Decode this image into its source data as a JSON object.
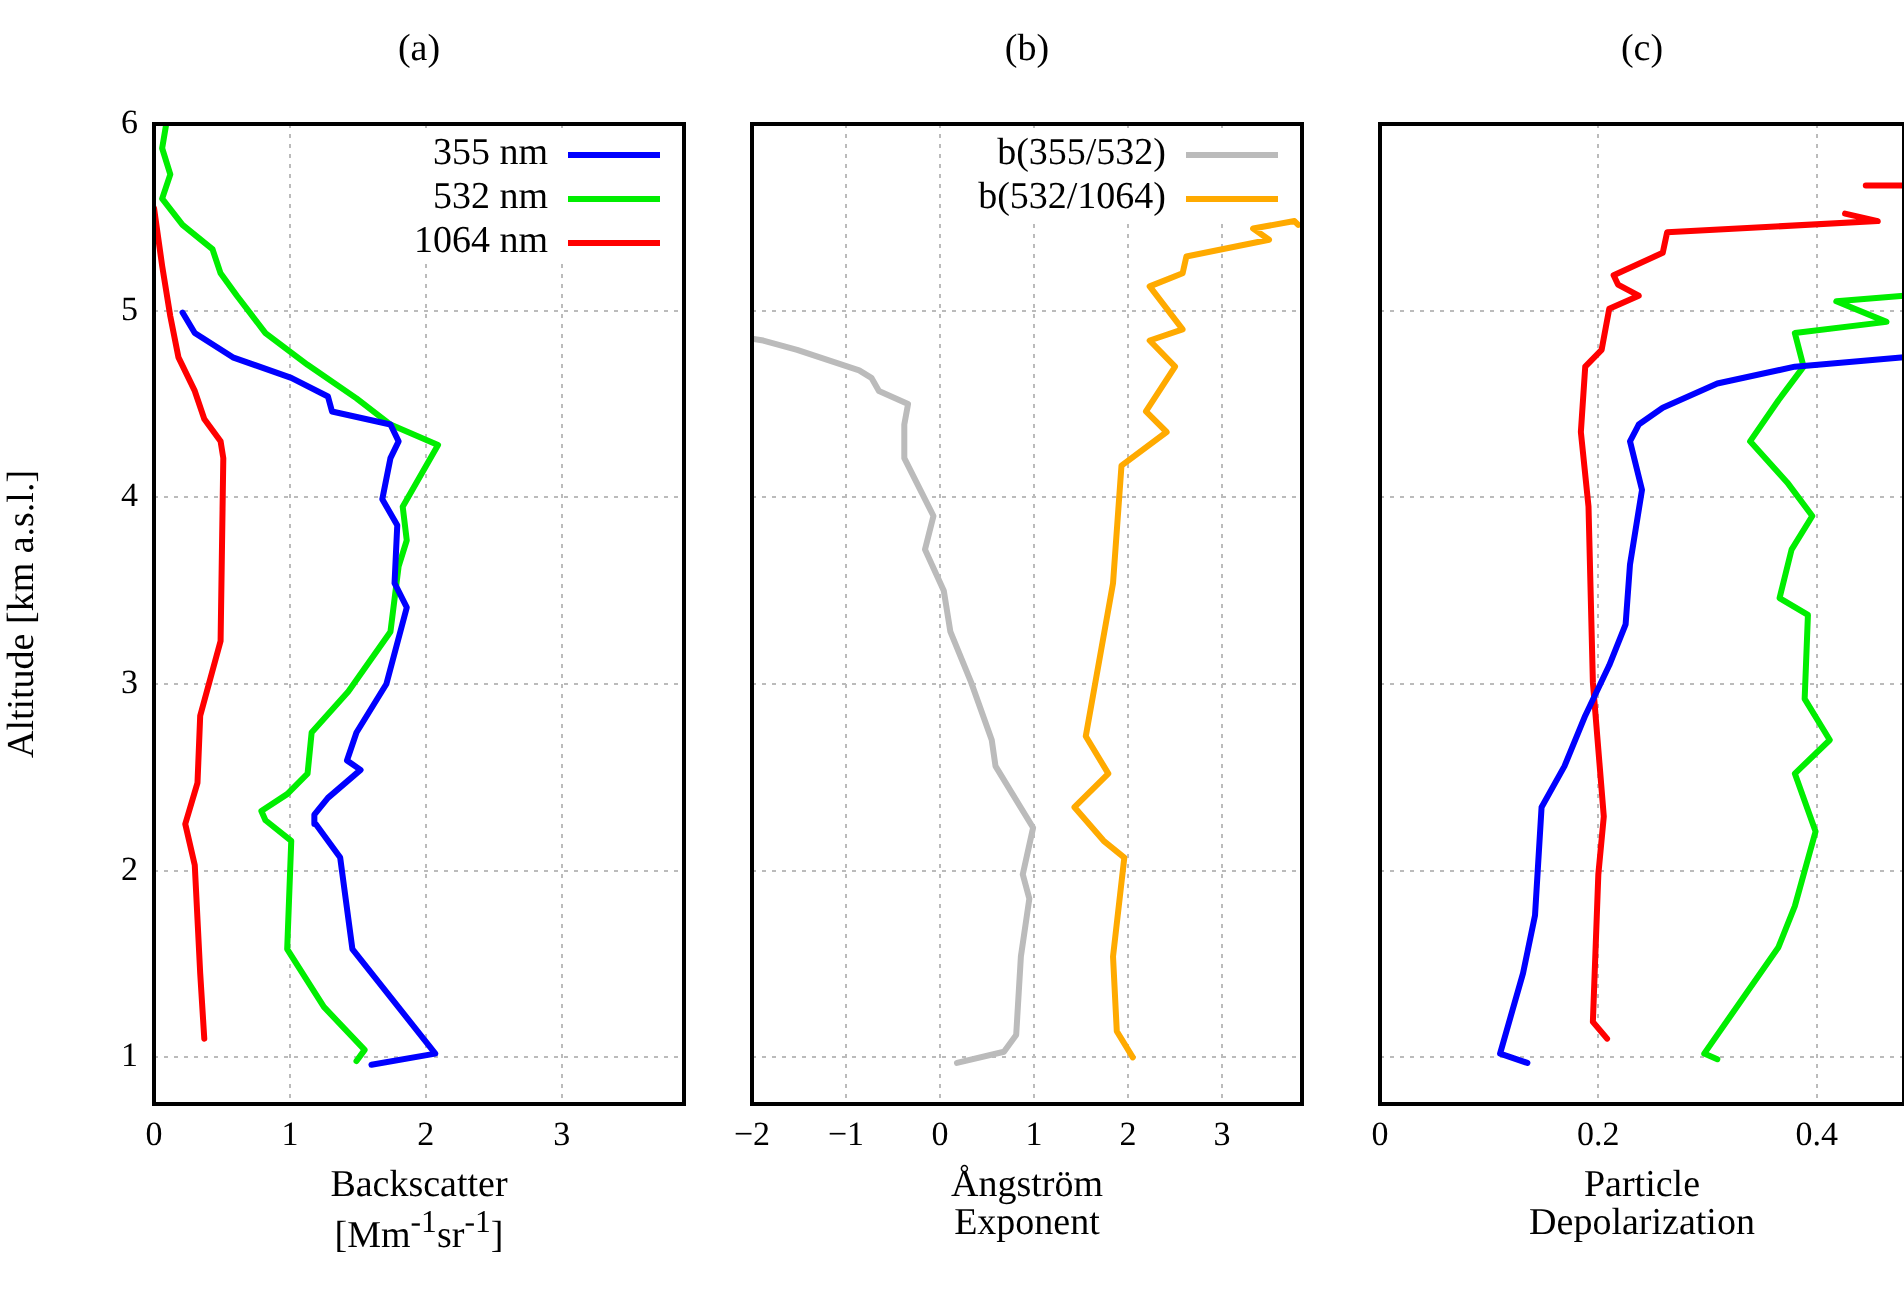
{
  "chart_data": [
    {
      "type": "line",
      "title": "(a)",
      "xlabel": "Backscatter\n[Mm$^{-1}$sr$^{-1}$]",
      "ylabel": "Altitude [km a.s.l.]",
      "xlim": [
        0,
        3.9
      ],
      "xticks": [
        0,
        1,
        2,
        3
      ],
      "ylim": [
        0.75,
        6
      ],
      "yticks": [
        1,
        2,
        3,
        4,
        5,
        6
      ],
      "grid": true,
      "legend": "top right",
      "marker": "none",
      "line_style": "solid",
      "series": [
        {
          "name": "355 nm",
          "color": "#0000ff",
          "x": [
            1.6,
            2.07,
            1.46,
            1.37,
            1.19,
            1.18,
            1.28,
            1.52,
            1.42,
            1.49,
            1.71,
            1.86,
            1.77,
            1.79,
            1.68,
            1.74,
            1.8,
            1.74,
            1.31,
            1.28,
            1.01,
            0.58,
            0.3,
            0.21
          ],
          "values": [
            0.96,
            1.02,
            1.58,
            2.07,
            2.25,
            2.3,
            2.39,
            2.54,
            2.59,
            2.74,
            3.0,
            3.41,
            3.54,
            3.85,
            3.99,
            4.21,
            4.3,
            4.39,
            4.46,
            4.54,
            4.64,
            4.75,
            4.88,
            4.99
          ]
        },
        {
          "name": "532 nm",
          "color": "#00ee00",
          "x": [
            1.49,
            1.55,
            1.25,
            0.98,
            1.01,
            0.82,
            0.79,
            0.98,
            1.13,
            1.16,
            1.43,
            1.74,
            1.8,
            1.86,
            1.83,
            2.09,
            1.74,
            1.49,
            1.13,
            0.82,
            0.61,
            0.49,
            0.43,
            0.21,
            0.06,
            0.12,
            0.06,
            0.09
          ],
          "values": [
            0.98,
            1.04,
            1.27,
            1.58,
            2.16,
            2.27,
            2.32,
            2.41,
            2.52,
            2.74,
            2.96,
            3.28,
            3.63,
            3.77,
            3.95,
            4.28,
            4.39,
            4.53,
            4.71,
            4.88,
            5.08,
            5.2,
            5.33,
            5.46,
            5.6,
            5.73,
            5.87,
            6.0
          ]
        },
        {
          "name": "1064 nm",
          "color": "#ff0000",
          "x": [
            0.37,
            0.34,
            0.3,
            0.23,
            0.32,
            0.34,
            0.49,
            0.51,
            0.49,
            0.37,
            0.3,
            0.18,
            0.12,
            0.06,
            0
          ],
          "values": [
            1.1,
            1.45,
            2.03,
            2.25,
            2.47,
            2.83,
            3.23,
            4.21,
            4.3,
            4.42,
            4.57,
            4.75,
            4.97,
            5.24,
            5.55
          ]
        }
      ]
    },
    {
      "type": "line",
      "title": "(b)",
      "xlabel": "Ångström\nExponent",
      "xlim": [
        -2,
        3.85
      ],
      "xticks": [
        {
          "value": -2,
          "label": "−2"
        },
        {
          "value": -1,
          "label": "−1"
        },
        0,
        1,
        2,
        3
      ],
      "ylim": [
        0.75,
        6
      ],
      "yticks": [
        1,
        2,
        3,
        4,
        5,
        6
      ],
      "tick_labels": "x",
      "grid": true,
      "legend": "top right",
      "marker": "none",
      "line_style": "solid",
      "series": [
        {
          "name": "b(355/532)",
          "color": "#bbbbbb",
          "x": [
            0.18,
            0.68,
            0.81,
            0.86,
            0.95,
            0.88,
            0.99,
            0.59,
            0.55,
            0.33,
            0.11,
            0.04,
            -0.16,
            -0.07,
            -0.38,
            -0.38,
            -0.34,
            -0.65,
            -0.73,
            -0.86,
            -1.52,
            -1.88,
            -2
          ],
          "values": [
            0.97,
            1.03,
            1.12,
            1.54,
            1.85,
            1.98,
            2.23,
            2.56,
            2.7,
            3.01,
            3.28,
            3.5,
            3.72,
            3.9,
            4.21,
            4.39,
            4.5,
            4.57,
            4.64,
            4.68,
            4.79,
            4.84,
            4.85
          ]
        },
        {
          "name": "b(532/1064)",
          "color": "#ffaa00",
          "x": [
            2.05,
            1.88,
            1.84,
            1.96,
            1.74,
            1.43,
            1.79,
            1.55,
            1.84,
            1.93,
            2.41,
            2.19,
            2.5,
            2.23,
            2.58,
            2.23,
            2.58,
            2.62,
            3.5,
            3.33,
            3.77,
            3.81
          ],
          "values": [
            1.0,
            1.14,
            1.54,
            2.07,
            2.16,
            2.34,
            2.52,
            2.72,
            3.54,
            4.17,
            4.35,
            4.46,
            4.7,
            4.84,
            4.9,
            5.13,
            5.2,
            5.29,
            5.38,
            5.44,
            5.48,
            5.46
          ]
        }
      ]
    },
    {
      "type": "line",
      "title": "(c)",
      "xlabel": "Particle\nDepolarization",
      "xlim": [
        0,
        0.48
      ],
      "xticks": [
        0,
        0.2,
        0.4
      ],
      "ylim": [
        0.75,
        6
      ],
      "yticks": [
        1,
        2,
        3,
        4,
        5,
        6
      ],
      "tick_labels": "x",
      "grid": true,
      "marker": "none",
      "line_style": "solid",
      "series": [
        {
          "color": "#0000ff",
          "x": [
            0.135,
            0.11,
            0.131,
            0.142,
            0.148,
            0.169,
            0.188,
            0.21,
            0.225,
            0.229,
            0.24,
            0.229,
            0.237,
            0.259,
            0.309,
            0.38,
            0.48
          ],
          "values": [
            0.97,
            1.02,
            1.45,
            1.76,
            2.34,
            2.56,
            2.83,
            3.1,
            3.32,
            3.64,
            4.04,
            4.3,
            4.39,
            4.48,
            4.61,
            4.7,
            4.75
          ]
        },
        {
          "color": "#00ee00",
          "x": [
            0.309,
            0.297,
            0.365,
            0.38,
            0.399,
            0.38,
            0.412,
            0.389,
            0.392,
            0.366,
            0.377,
            0.396,
            0.373,
            0.339,
            0.365,
            0.388,
            0.38,
            0.464,
            0.418,
            0.48
          ],
          "values": [
            0.99,
            1.02,
            1.59,
            1.81,
            2.21,
            2.52,
            2.7,
            2.92,
            3.37,
            3.46,
            3.72,
            3.9,
            4.08,
            4.3,
            4.52,
            4.7,
            4.88,
            4.94,
            5.05,
            5.08
          ]
        },
        {
          "color": "#ff0000",
          "x": [
            0.208,
            0.195,
            0.2,
            0.205,
            0.195,
            0.191,
            0.184,
            0.188,
            0.203,
            0.21,
            0.237,
            0.218,
            0.214,
            0.259,
            0.263,
            0.456,
            0.426,
            null,
            0.445,
            0.48
          ],
          "values": [
            1.1,
            1.19,
            1.98,
            2.29,
            3.01,
            3.95,
            4.35,
            4.7,
            4.79,
            5.01,
            5.08,
            5.14,
            5.19,
            5.31,
            5.42,
            5.48,
            5.52,
            null,
            5.67,
            5.67
          ]
        }
      ]
    }
  ]
}
